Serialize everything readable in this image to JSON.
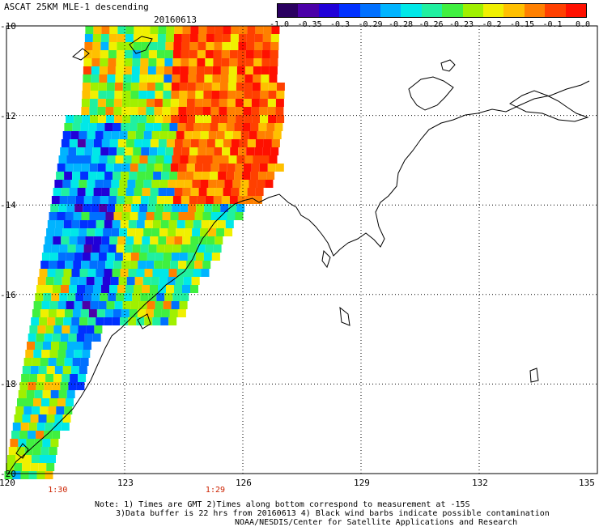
{
  "header": {
    "title": "ASCAT 25KM MLE-1 descending",
    "date": "20160613"
  },
  "colorbar": {
    "ticks": [
      "-1.0",
      "-0.35",
      "-0.3",
      "-0.29",
      "-0.28",
      "-0.26",
      "-0.23",
      "-0.2",
      "-0.15",
      "-0.1",
      "0.0"
    ],
    "colors": [
      "#2a0060",
      "#4b00a8",
      "#2000d8",
      "#0030ff",
      "#0070ff",
      "#00b4ff",
      "#00e8e8",
      "#20f0a0",
      "#40f040",
      "#a0f000",
      "#f0f000",
      "#ffc000",
      "#ff8000",
      "#ff4000",
      "#ff1000"
    ]
  },
  "axes": {
    "y_ticks": [
      "-10",
      "-12",
      "-14",
      "-16",
      "-18",
      "-20"
    ],
    "x_ticks": [
      "120",
      "123",
      "126",
      "129",
      "132",
      "135"
    ],
    "lat_range": [
      -20,
      -10
    ],
    "lon_range": [
      120,
      135
    ]
  },
  "times": [
    {
      "label": "1:30",
      "lon": 121.3
    },
    {
      "label": "1:29",
      "lon": 125.3
    }
  ],
  "notes": {
    "line1": "Note: 1) Times are GMT 2)Times along bottom correspond to measurement at -15S",
    "line2": "3)Data buffer is 22 hrs from 20160613 4) Black wind barbs indicate possible contamination",
    "line3": "NOAA/NESDIS/Center for Satellite Applications and Research"
  }
}
